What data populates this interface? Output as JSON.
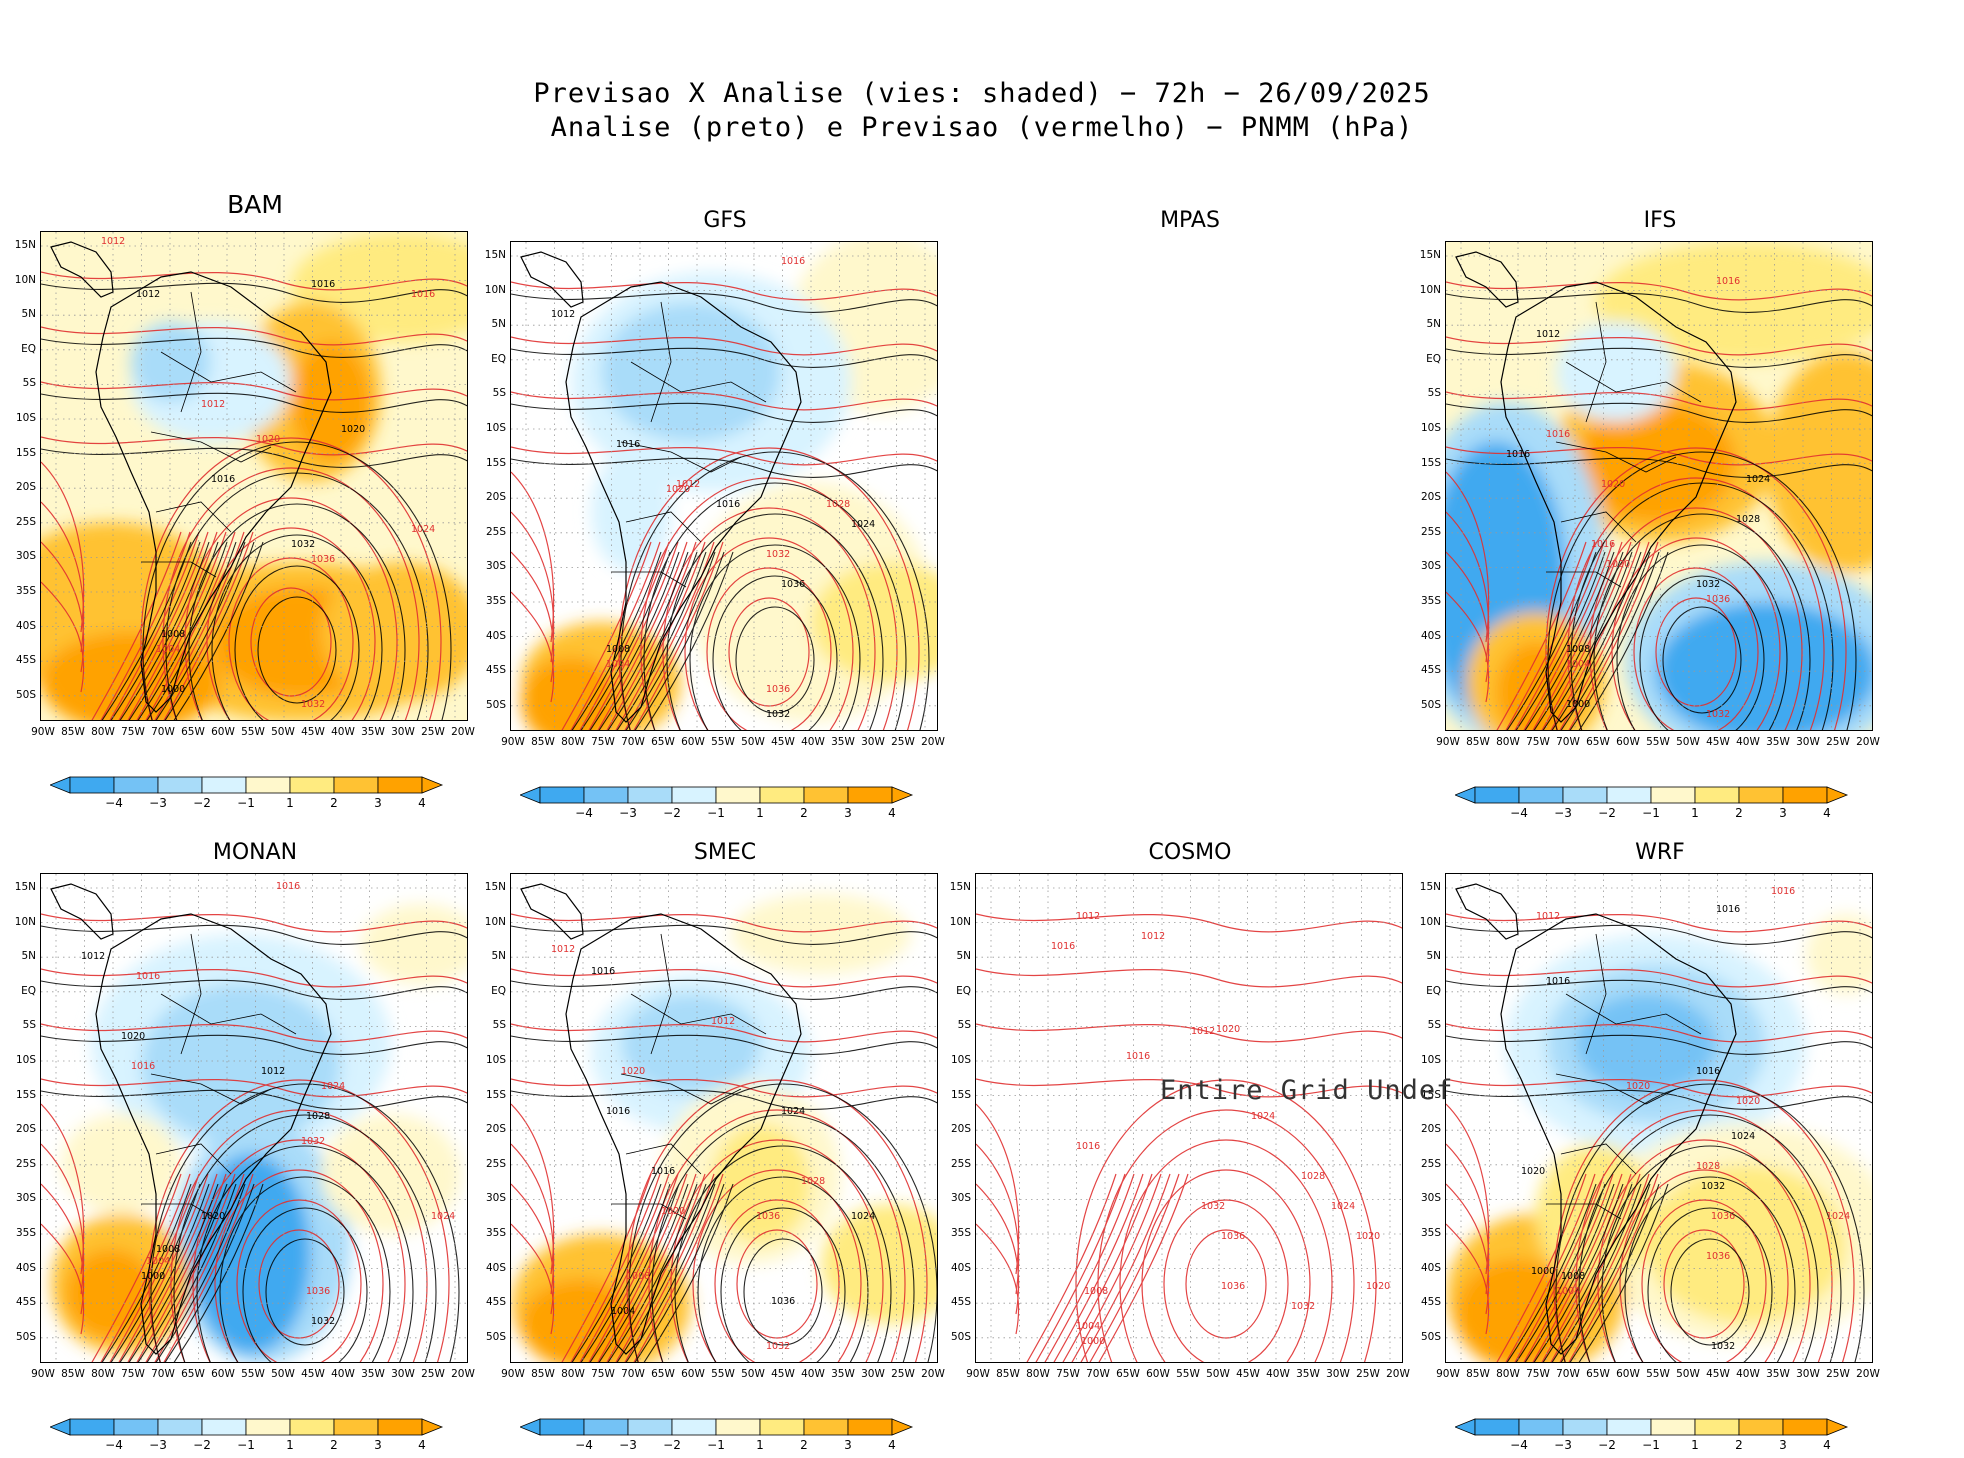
{
  "title_line1": "Previsao X Analise (vies: shaded) − 72h − 26/09/2025",
  "title_line2": "Analise (preto) e Previsao (vermelho) − PNMM (hPa)",
  "lat_labels": [
    "15N",
    "10N",
    "5N",
    "EQ",
    "5S",
    "10S",
    "15S",
    "20S",
    "25S",
    "30S",
    "35S",
    "40S",
    "45S",
    "50S"
  ],
  "lon_labels": [
    "90W",
    "85W",
    "80W",
    "75W",
    "70W",
    "65W",
    "60W",
    "55W",
    "50W",
    "45W",
    "40W",
    "35W",
    "30W",
    "25W",
    "20W"
  ],
  "colorbar_labels": [
    "−4",
    "−3",
    "−2",
    "−1",
    "1",
    "2",
    "3",
    "4"
  ],
  "colors": {
    "neg4": "#3fa9f0",
    "neg3": "#74c2f5",
    "neg2": "#a9dcf9",
    "neg1": "#d8f3ff",
    "pos1": "#fff8cc",
    "pos2": "#ffeb80",
    "pos3": "#ffc233",
    "pos4": "#ffa200",
    "analysis": "#000000",
    "forecast": "#e03030"
  },
  "undef_text": "Entire Grid Undef",
  "panels": [
    {
      "name": "BAM",
      "labels": [
        "1012",
        "1016",
        "1016",
        "1012",
        "1012",
        "1016",
        "1020",
        "1020",
        "1024",
        "1032",
        "1036",
        "1000",
        "1004",
        "1008",
        "1032"
      ]
    },
    {
      "name": "GFS",
      "labels": [
        "1016",
        "1012",
        "1012",
        "1016",
        "1020",
        "1016",
        "1028",
        "1024",
        "1032",
        "1036",
        "1004",
        "1008",
        "1036",
        "1032"
      ]
    },
    {
      "name": "MPAS",
      "labels": []
    },
    {
      "name": "IFS",
      "labels": [
        "1016",
        "1012",
        "1016",
        "1016",
        "1020",
        "1024",
        "1016",
        "1028",
        "1020",
        "1032",
        "1036",
        "1000",
        "1004",
        "1008",
        "1032"
      ]
    },
    {
      "name": "MONAN",
      "labels": [
        "1016",
        "1012",
        "1016",
        "1020",
        "1016",
        "1012",
        "1024",
        "1028",
        "1032",
        "1020",
        "1024",
        "1000",
        "1004",
        "1008",
        "1036",
        "1032"
      ]
    },
    {
      "name": "SMEC",
      "labels": [
        "1012",
        "1016",
        "1020",
        "1016",
        "1012",
        "1024",
        "1028",
        "1024",
        "1036",
        "1016",
        "1020",
        "1004",
        "1008",
        "1036",
        "1032"
      ]
    },
    {
      "name": "COSMO",
      "labels": [
        "1012",
        "1016",
        "1012",
        "1016",
        "1020",
        "1024",
        "1028",
        "1032",
        "1036",
        "1024",
        "1012",
        "1016",
        "1020",
        "1000",
        "1004",
        "1008",
        "1036",
        "1032",
        "1020"
      ]
    },
    {
      "name": "WRF",
      "labels": [
        "1016",
        "1016",
        "1012",
        "1016",
        "1020",
        "1016",
        "1020",
        "1024",
        "1028",
        "1032",
        "1036",
        "1020",
        "1024",
        "1000",
        "1004",
        "1008",
        "1036",
        "1032"
      ]
    }
  ]
}
